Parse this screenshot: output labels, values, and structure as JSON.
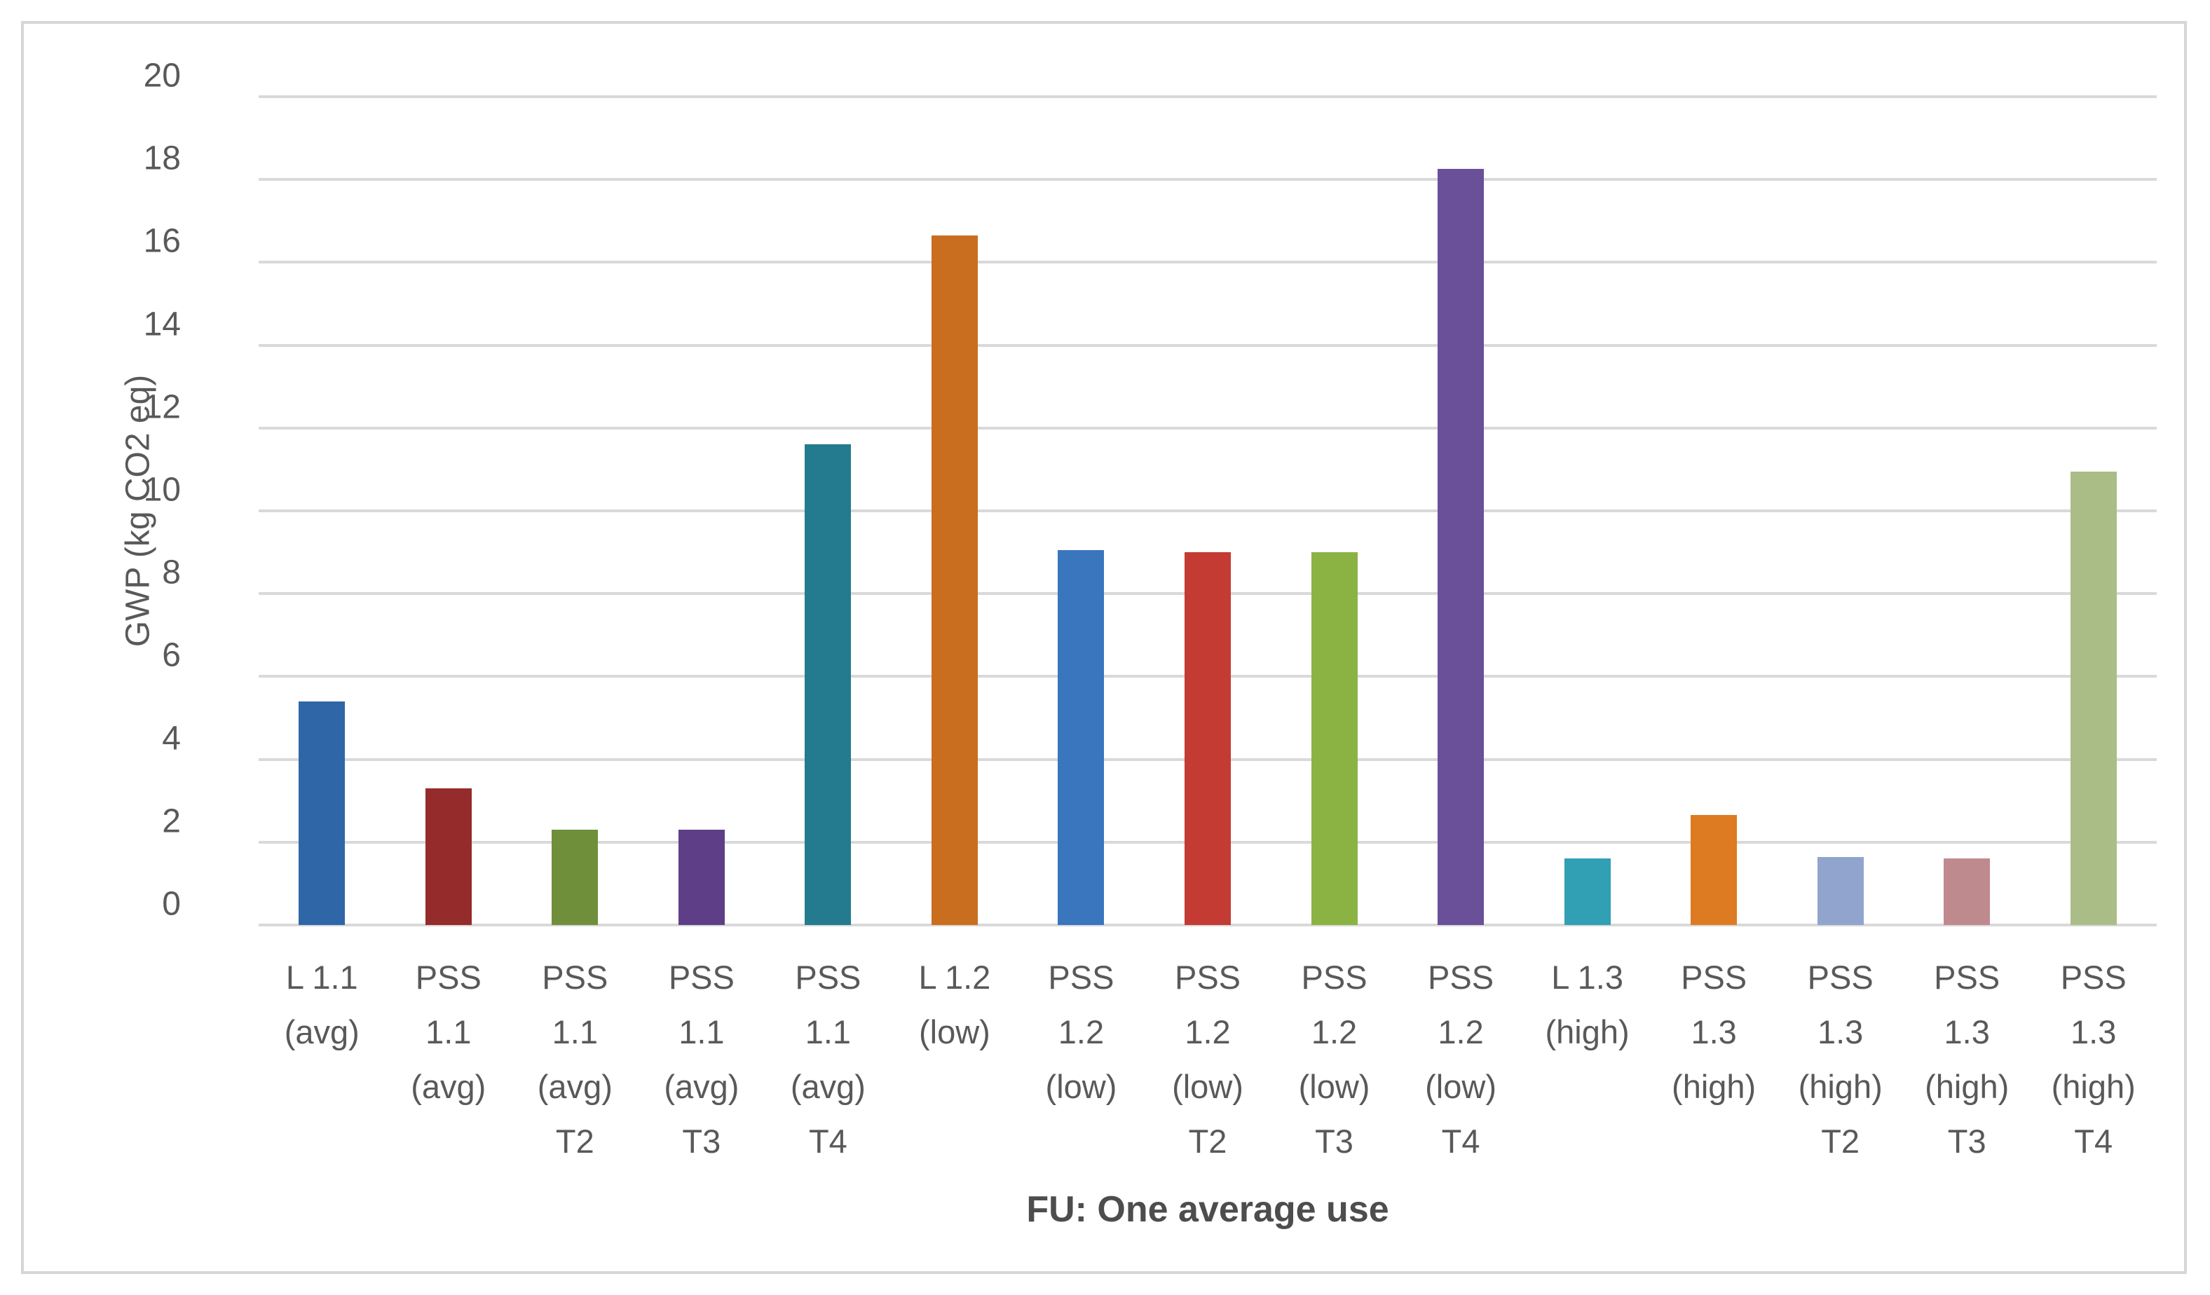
{
  "chart_data": {
    "type": "bar",
    "title": "",
    "xlabel": "FU: One average use",
    "ylabel": "GWP (kg CO2 eq)",
    "ylim": [
      0,
      20
    ],
    "yticks": [
      0,
      2,
      4,
      6,
      8,
      10,
      12,
      14,
      16,
      18,
      20
    ],
    "grid": true,
    "legend": "none",
    "categories": [
      "L 1.1 (avg)",
      "PSS 1.1 (avg)",
      "PSS 1.1 (avg) T2",
      "PSS 1.1 (avg) T3",
      "PSS 1.1 (avg) T4",
      "L 1.2 (low)",
      "PSS 1.2 (low)",
      "PSS 1.2 (low) T2",
      "PSS 1.2 (low) T3",
      "PSS 1.2 (low) T4",
      "L 1.3 (high)",
      "PSS 1.3 (high)",
      "PSS 1.3 (high) T2",
      "PSS 1.3 (high) T3",
      "PSS 1.3 (high) T4"
    ],
    "category_lines": [
      [
        "L 1.1",
        "(avg)"
      ],
      [
        "PSS",
        "1.1",
        "(avg)"
      ],
      [
        "PSS",
        "1.1",
        "(avg)",
        "T2"
      ],
      [
        "PSS",
        "1.1",
        "(avg)",
        "T3"
      ],
      [
        "PSS",
        "1.1",
        "(avg)",
        "T4"
      ],
      [
        "L 1.2",
        "(low)"
      ],
      [
        "PSS",
        "1.2",
        "(low)"
      ],
      [
        "PSS",
        "1.2",
        "(low)",
        "T2"
      ],
      [
        "PSS",
        "1.2",
        "(low)",
        "T3"
      ],
      [
        "PSS",
        "1.2",
        "(low)",
        "T4"
      ],
      [
        "L 1.3",
        "(high)"
      ],
      [
        "PSS",
        "1.3",
        "(high)"
      ],
      [
        "PSS",
        "1.3",
        "(high)",
        "T2"
      ],
      [
        "PSS",
        "1.3",
        "(high)",
        "T3"
      ],
      [
        "PSS",
        "1.3",
        "(high)",
        "T4"
      ]
    ],
    "values": [
      5.4,
      3.3,
      2.3,
      2.3,
      11.6,
      16.65,
      9.05,
      9.0,
      9.0,
      18.25,
      1.6,
      2.65,
      1.65,
      1.6,
      10.95
    ],
    "bar_colors": [
      "#2F66A8",
      "#952B2B",
      "#708F3B",
      "#5E3F87",
      "#247A8E",
      "#C96E1E",
      "#3A76BE",
      "#C33B33",
      "#8BB344",
      "#6A4F99",
      "#319FB4",
      "#DD7B23",
      "#90A4CD",
      "#BF8A8E",
      "#AABD86"
    ]
  },
  "colors": {
    "gridline": "#D9D9D9",
    "axis_text": "#595959",
    "x_title_text": "#4D4D4D",
    "frame_border": "#D6D6D6",
    "background": "#FFFFFF"
  }
}
